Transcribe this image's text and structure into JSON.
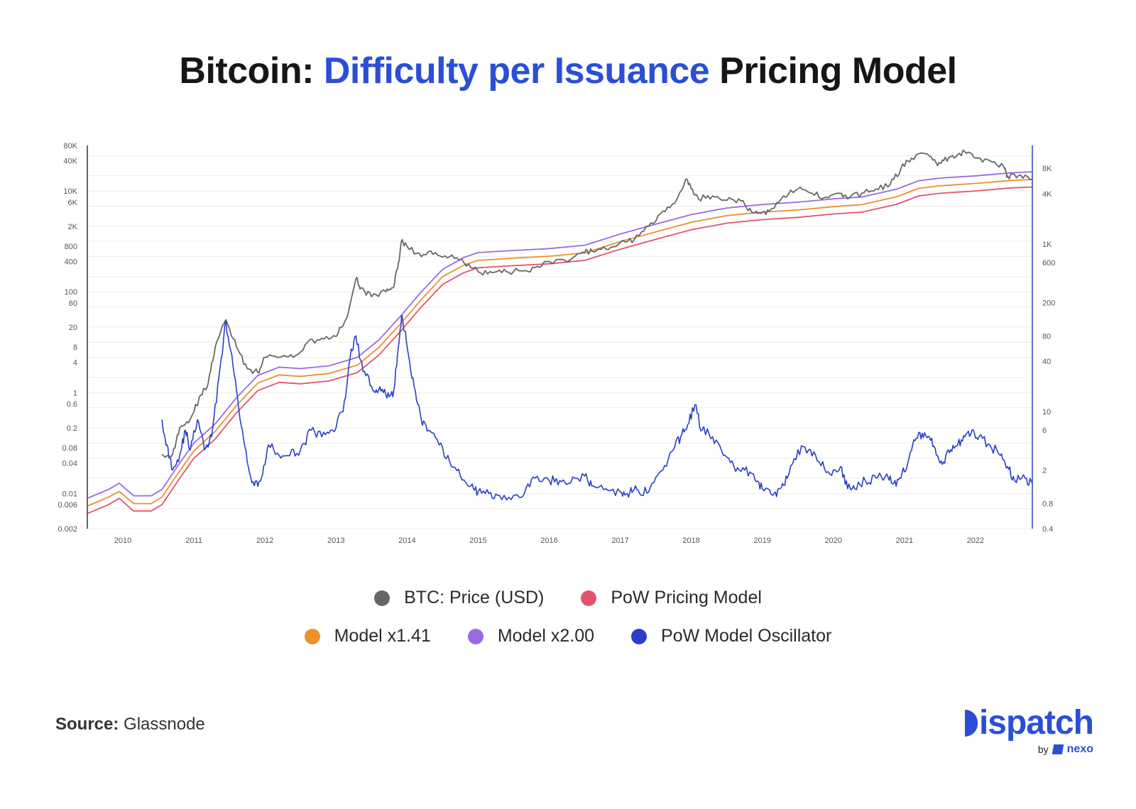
{
  "title": {
    "prefix": "Bitcoin: ",
    "highlight": "Difficulty per Issuance",
    "suffix": " Pricing Model"
  },
  "colors": {
    "price": "#666666",
    "pow_model": "#e0546b",
    "model_141": "#e8922a",
    "model_200": "#9b6ae0",
    "oscillator": "#2a3ec8",
    "accent": "#2a4fd6"
  },
  "chart_data": {
    "type": "line",
    "x_range": [
      2009.5,
      2022.8
    ],
    "x_ticks": [
      "2010",
      "2011",
      "2012",
      "2013",
      "2014",
      "2015",
      "2016",
      "2017",
      "2018",
      "2019",
      "2020",
      "2021",
      "2022"
    ],
    "y_left": {
      "scale": "log",
      "range": [
        0.002,
        80000
      ],
      "ticks": [
        "80K",
        "40K",
        "10K",
        "6K",
        "2K",
        "800",
        "400",
        "100",
        "60",
        "20",
        "8",
        "4",
        "1",
        "0.6",
        "0.2",
        "0.08",
        "0.04",
        "0.01",
        "0.006",
        "0.002"
      ]
    },
    "y_right": {
      "scale": "log",
      "range": [
        0.4,
        15000
      ],
      "ticks": [
        "8K",
        "4K",
        "1K",
        "600",
        "200",
        "80",
        "40",
        "10",
        "6",
        "2",
        "0.8",
        "0.4"
      ]
    },
    "series": [
      {
        "name": "BTC: Price (USD)",
        "axis": "left",
        "color": "#666666",
        "x": [
          2010.55,
          2010.7,
          2010.8,
          2010.95,
          2011.1,
          2011.2,
          2011.3,
          2011.45,
          2011.6,
          2011.75,
          2011.9,
          2012.0,
          2012.2,
          2012.4,
          2012.6,
          2012.8,
          2013.0,
          2013.15,
          2013.28,
          2013.35,
          2013.5,
          2013.7,
          2013.8,
          2013.87,
          2013.92,
          2014.0,
          2014.2,
          2014.4,
          2014.6,
          2014.8,
          2015.0,
          2015.2,
          2015.4,
          2015.6,
          2015.8,
          2016.0,
          2016.3,
          2016.5,
          2016.6,
          2016.8,
          2017.0,
          2017.2,
          2017.4,
          2017.6,
          2017.8,
          2017.92,
          2018.0,
          2018.1,
          2018.3,
          2018.5,
          2018.7,
          2018.85,
          2018.95,
          2019.1,
          2019.3,
          2019.5,
          2019.7,
          2019.9,
          2020.1,
          2020.2,
          2020.4,
          2020.6,
          2020.8,
          2020.95,
          2021.1,
          2021.3,
          2021.45,
          2021.55,
          2021.7,
          2021.85,
          2022.0,
          2022.2,
          2022.4,
          2022.45,
          2022.6,
          2022.8
        ],
        "values": [
          0.06,
          0.06,
          0.2,
          0.3,
          0.9,
          1.5,
          8,
          28,
          8,
          3,
          2.5,
          5,
          5,
          5,
          10,
          12,
          13,
          30,
          180,
          120,
          80,
          100,
          120,
          300,
          1000,
          800,
          500,
          600,
          500,
          380,
          250,
          240,
          250,
          260,
          300,
          400,
          430,
          600,
          650,
          700,
          950,
          1100,
          2000,
          4000,
          7000,
          17000,
          11000,
          7000,
          8000,
          6500,
          6300,
          3800,
          3700,
          4000,
          8000,
          11000,
          9000,
          7500,
          9000,
          7000,
          9000,
          11000,
          13500,
          28000,
          45000,
          55000,
          35000,
          40000,
          45000,
          60000,
          45000,
          40000,
          30000,
          20000,
          20000,
          17000
        ]
      },
      {
        "name": "PoW Pricing Model",
        "axis": "left",
        "color": "#e0546b",
        "x": [
          2009.5,
          2009.8,
          2009.95,
          2010.15,
          2010.4,
          2010.55,
          2010.8,
          2011.0,
          2011.3,
          2011.6,
          2011.9,
          2012.2,
          2012.5,
          2012.9,
          2013.3,
          2013.6,
          2013.9,
          2014.2,
          2014.5,
          2014.8,
          2015.0,
          2015.5,
          2016.0,
          2016.5,
          2017.0,
          2017.5,
          2018.0,
          2018.5,
          2019.0,
          2019.5,
          2020.0,
          2020.4,
          2020.9,
          2021.2,
          2021.5,
          2022.0,
          2022.5,
          2022.8
        ],
        "values": [
          0.004,
          0.006,
          0.008,
          0.0045,
          0.0045,
          0.006,
          0.02,
          0.05,
          0.12,
          0.4,
          1.1,
          1.6,
          1.5,
          1.7,
          2.5,
          5.5,
          16,
          50,
          140,
          240,
          300,
          330,
          360,
          420,
          700,
          1100,
          1700,
          2300,
          2700,
          3000,
          3500,
          3800,
          5500,
          8000,
          9000,
          10000,
          11500,
          12000
        ]
      },
      {
        "name": "Model x1.41",
        "axis": "left",
        "color": "#e8922a",
        "x": [
          2009.5,
          2009.8,
          2009.95,
          2010.15,
          2010.4,
          2010.55,
          2010.8,
          2011.0,
          2011.3,
          2011.6,
          2011.9,
          2012.2,
          2012.5,
          2012.9,
          2013.3,
          2013.6,
          2013.9,
          2014.2,
          2014.5,
          2014.8,
          2015.0,
          2015.5,
          2016.0,
          2016.5,
          2017.0,
          2017.5,
          2018.0,
          2018.5,
          2019.0,
          2019.5,
          2020.0,
          2020.4,
          2020.9,
          2021.2,
          2021.5,
          2022.0,
          2022.5,
          2022.8
        ],
        "values": [
          0.0056,
          0.0085,
          0.011,
          0.0063,
          0.0063,
          0.0085,
          0.028,
          0.07,
          0.17,
          0.56,
          1.55,
          2.25,
          2.1,
          2.4,
          3.5,
          7.8,
          22.5,
          70,
          200,
          340,
          420,
          465,
          510,
          590,
          990,
          1550,
          2400,
          3250,
          3800,
          4200,
          4900,
          5350,
          7750,
          11300,
          12700,
          14100,
          16200,
          16900
        ]
      },
      {
        "name": "Model x2.00",
        "axis": "left",
        "color": "#9b6ae0",
        "x": [
          2009.5,
          2009.8,
          2009.95,
          2010.15,
          2010.4,
          2010.55,
          2010.8,
          2011.0,
          2011.3,
          2011.6,
          2011.9,
          2012.2,
          2012.5,
          2012.9,
          2013.3,
          2013.6,
          2013.9,
          2014.2,
          2014.5,
          2014.8,
          2015.0,
          2015.5,
          2016.0,
          2016.5,
          2017.0,
          2017.5,
          2018.0,
          2018.5,
          2019.0,
          2019.5,
          2020.0,
          2020.4,
          2020.9,
          2021.2,
          2021.5,
          2022.0,
          2022.5,
          2022.8
        ],
        "values": [
          0.008,
          0.012,
          0.016,
          0.009,
          0.009,
          0.012,
          0.04,
          0.1,
          0.24,
          0.8,
          2.2,
          3.2,
          3.0,
          3.4,
          5.0,
          11,
          32,
          100,
          280,
          480,
          600,
          660,
          720,
          840,
          1400,
          2200,
          3400,
          4600,
          5400,
          6000,
          7000,
          7600,
          11000,
          16000,
          18000,
          20000,
          23000,
          24000
        ]
      },
      {
        "name": "PoW Model Oscillator",
        "axis": "right",
        "color": "#2a3ec8",
        "x": [
          2010.55,
          2010.62,
          2010.7,
          2010.8,
          2010.88,
          2010.95,
          2011.05,
          2011.15,
          2011.25,
          2011.35,
          2011.45,
          2011.55,
          2011.65,
          2011.75,
          2011.85,
          2011.95,
          2012.05,
          2012.2,
          2012.35,
          2012.5,
          2012.65,
          2012.8,
          2012.95,
          2013.1,
          2013.2,
          2013.28,
          2013.38,
          2013.5,
          2013.6,
          2013.7,
          2013.8,
          2013.88,
          2013.93,
          2014.0,
          2014.1,
          2014.2,
          2014.3,
          2014.45,
          2014.6,
          2014.75,
          2014.9,
          2015.0,
          2015.15,
          2015.3,
          2015.5,
          2015.65,
          2015.8,
          2016.0,
          2016.15,
          2016.3,
          2016.5,
          2016.6,
          2016.8,
          2017.0,
          2017.1,
          2017.2,
          2017.3,
          2017.45,
          2017.6,
          2017.75,
          2017.85,
          2017.95,
          2018.05,
          2018.15,
          2018.3,
          2018.45,
          2018.6,
          2018.75,
          2018.9,
          2019.0,
          2019.15,
          2019.25,
          2019.35,
          2019.5,
          2019.65,
          2019.8,
          2019.95,
          2020.1,
          2020.2,
          2020.3,
          2020.45,
          2020.6,
          2020.75,
          2020.85,
          2020.95,
          2021.05,
          2021.15,
          2021.25,
          2021.35,
          2021.45,
          2021.55,
          2021.65,
          2021.75,
          2021.85,
          2021.95,
          2022.05,
          2022.2,
          2022.35,
          2022.45,
          2022.55,
          2022.7,
          2022.8
        ],
        "values": [
          8,
          4,
          2,
          3,
          6,
          3.5,
          8,
          3.5,
          5,
          25,
          120,
          35,
          8,
          2.5,
          1.3,
          1.6,
          4,
          3,
          3,
          3.5,
          6,
          5,
          6,
          10,
          45,
          80,
          30,
          20,
          18,
          16,
          15,
          60,
          140,
          60,
          20,
          8,
          6,
          4,
          2.5,
          1.7,
          1.3,
          1.1,
          1.05,
          1.0,
          1.0,
          1.05,
          1.6,
          1.5,
          1.5,
          1.4,
          1.7,
          1.3,
          1.2,
          1.1,
          1.05,
          1.2,
          1.0,
          1.4,
          2.0,
          3.5,
          5,
          7,
          12,
          6,
          5,
          3,
          2.2,
          2.0,
          1.5,
          1.2,
          1.0,
          1.2,
          1.6,
          3.5,
          3.5,
          2.5,
          1.8,
          2.2,
          1.2,
          1.2,
          1.5,
          1.6,
          1.8,
          1.4,
          1.6,
          2.5,
          4.5,
          5.5,
          5,
          3,
          2.5,
          3.5,
          4,
          5,
          6,
          5,
          4,
          3,
          2.2,
          1.5,
          1.6,
          1.4
        ]
      }
    ]
  },
  "legend": {
    "row1": [
      "BTC: Price (USD)",
      "PoW Pricing Model"
    ],
    "row2": [
      "Model x1.41",
      "Model x2.00",
      "PoW Model Oscillator"
    ]
  },
  "source": {
    "label": "Source:",
    "value": "Glassnode"
  },
  "brand": {
    "name": "ispatch",
    "by": "by",
    "partner": "nexo"
  }
}
